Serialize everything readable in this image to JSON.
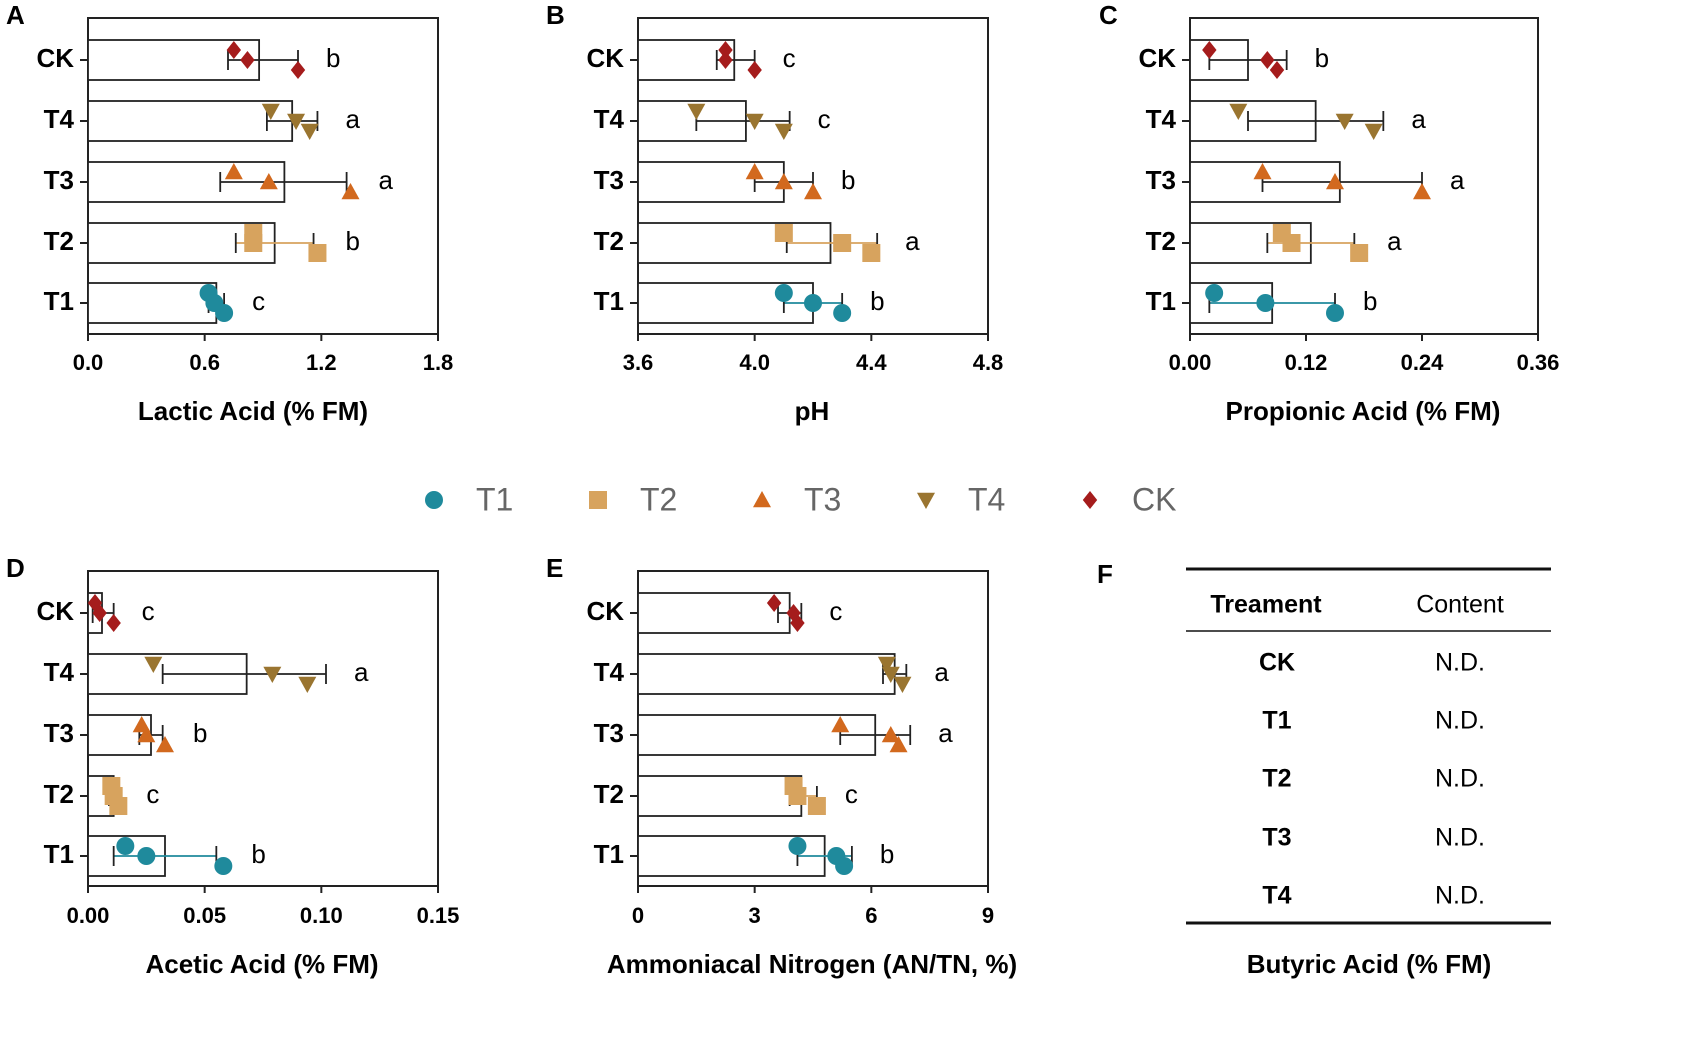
{
  "categories": [
    "CK",
    "T4",
    "T3",
    "T2",
    "T1"
  ],
  "colors": {
    "T1": "#1f8a9c",
    "T2": "#d7a35e",
    "T3": "#d2691e",
    "T4": "#9a7530",
    "CK": "#a51c1c"
  },
  "legend": [
    {
      "name": "T1",
      "marker": "circle"
    },
    {
      "name": "T2",
      "marker": "square"
    },
    {
      "name": "T3",
      "marker": "triangle-up"
    },
    {
      "name": "T4",
      "marker": "triangle-down"
    },
    {
      "name": "CK",
      "marker": "diamond"
    }
  ],
  "chart_data": [
    {
      "panel": "A",
      "type": "bar",
      "orientation": "horizontal",
      "xlabel": "Lactic Acid (% FM)",
      "xlim": [
        0,
        1.8
      ],
      "ticks": [
        0,
        0.6,
        1.2,
        1.8
      ],
      "tick_labels": [
        "0.0",
        "0.6",
        "1.2",
        "1.8"
      ],
      "bars": [
        {
          "group": "CK",
          "mean": 0.88,
          "err_low": 0.72,
          "err_high": 1.08,
          "points": [
            0.75,
            0.82,
            1.08
          ],
          "letter": "b"
        },
        {
          "group": "T4",
          "mean": 1.05,
          "err_low": 0.92,
          "err_high": 1.18,
          "points": [
            0.94,
            1.07,
            1.14
          ],
          "letter": "a"
        },
        {
          "group": "T3",
          "mean": 1.01,
          "err_low": 0.68,
          "err_high": 1.33,
          "points": [
            0.75,
            0.93,
            1.35
          ],
          "letter": "a"
        },
        {
          "group": "T2",
          "mean": 0.96,
          "err_low": 0.76,
          "err_high": 1.16,
          "points": [
            0.85,
            0.85,
            1.18
          ],
          "letter": "b"
        },
        {
          "group": "T1",
          "mean": 0.66,
          "err_low": 0.62,
          "err_high": 0.7,
          "points": [
            0.62,
            0.65,
            0.7
          ],
          "letter": "c"
        }
      ]
    },
    {
      "panel": "B",
      "type": "bar",
      "orientation": "horizontal",
      "xlabel": "pH",
      "xlim": [
        3.6,
        4.8
      ],
      "ticks": [
        3.6,
        4.0,
        4.4,
        4.8
      ],
      "tick_labels": [
        "3.6",
        "4.0",
        "4.4",
        "4.8"
      ],
      "bars": [
        {
          "group": "CK",
          "mean": 3.93,
          "err_low": 3.87,
          "err_high": 4.0,
          "points": [
            3.9,
            3.9,
            4.0
          ],
          "letter": "c"
        },
        {
          "group": "T4",
          "mean": 3.97,
          "err_low": 3.8,
          "err_high": 4.12,
          "points": [
            3.8,
            4.0,
            4.1
          ],
          "letter": "c"
        },
        {
          "group": "T3",
          "mean": 4.1,
          "err_low": 4.0,
          "err_high": 4.2,
          "points": [
            4.0,
            4.1,
            4.2
          ],
          "letter": "b"
        },
        {
          "group": "T2",
          "mean": 4.26,
          "err_low": 4.11,
          "err_high": 4.42,
          "points": [
            4.1,
            4.3,
            4.4
          ],
          "letter": "a"
        },
        {
          "group": "T1",
          "mean": 4.2,
          "err_low": 4.1,
          "err_high": 4.3,
          "points": [
            4.1,
            4.2,
            4.3
          ],
          "letter": "b"
        }
      ]
    },
    {
      "panel": "C",
      "type": "bar",
      "orientation": "horizontal",
      "xlabel": "Propionic Acid (% FM)",
      "xlim": [
        0,
        0.36
      ],
      "ticks": [
        0,
        0.12,
        0.24,
        0.36
      ],
      "tick_labels": [
        "0.00",
        "0.12",
        "0.24",
        "0.36"
      ],
      "bars": [
        {
          "group": "CK",
          "mean": 0.06,
          "err_low": 0.02,
          "err_high": 0.1,
          "points": [
            0.02,
            0.08,
            0.09
          ],
          "letter": "b"
        },
        {
          "group": "T4",
          "mean": 0.13,
          "err_low": 0.06,
          "err_high": 0.2,
          "points": [
            0.05,
            0.16,
            0.19
          ],
          "letter": "a"
        },
        {
          "group": "T3",
          "mean": 0.155,
          "err_low": 0.075,
          "err_high": 0.24,
          "points": [
            0.075,
            0.15,
            0.24
          ],
          "letter": "a"
        },
        {
          "group": "T2",
          "mean": 0.125,
          "err_low": 0.08,
          "err_high": 0.17,
          "points": [
            0.095,
            0.105,
            0.175
          ],
          "letter": "a"
        },
        {
          "group": "T1",
          "mean": 0.085,
          "err_low": 0.02,
          "err_high": 0.15,
          "points": [
            0.025,
            0.078,
            0.15
          ],
          "letter": "b"
        }
      ]
    },
    {
      "panel": "D",
      "type": "bar",
      "orientation": "horizontal",
      "xlabel": "Acetic Acid (% FM)",
      "xlim": [
        0,
        0.15
      ],
      "ticks": [
        0,
        0.05,
        0.1,
        0.15
      ],
      "tick_labels": [
        "0.00",
        "0.05",
        "0.10",
        "0.15"
      ],
      "bars": [
        {
          "group": "CK",
          "mean": 0.006,
          "err_low": 0.002,
          "err_high": 0.011,
          "points": [
            0.003,
            0.005,
            0.011
          ],
          "letter": "c"
        },
        {
          "group": "T4",
          "mean": 0.068,
          "err_low": 0.032,
          "err_high": 0.102,
          "points": [
            0.028,
            0.079,
            0.094
          ],
          "letter": "a"
        },
        {
          "group": "T3",
          "mean": 0.027,
          "err_low": 0.022,
          "err_high": 0.032,
          "points": [
            0.023,
            0.025,
            0.033
          ],
          "letter": "b"
        },
        {
          "group": "T2",
          "mean": 0.011,
          "err_low": 0.009,
          "err_high": 0.013,
          "points": [
            0.01,
            0.011,
            0.013
          ],
          "letter": "c"
        },
        {
          "group": "T1",
          "mean": 0.033,
          "err_low": 0.011,
          "err_high": 0.055,
          "points": [
            0.016,
            0.025,
            0.058
          ],
          "letter": "b"
        }
      ]
    },
    {
      "panel": "E",
      "type": "bar",
      "orientation": "horizontal",
      "xlabel": "Ammoniacal Nitrogen (AN/TN, %)",
      "xlim": [
        0,
        9
      ],
      "ticks": [
        0,
        3,
        6,
        9
      ],
      "tick_labels": [
        "0",
        "3",
        "6",
        "9"
      ],
      "bars": [
        {
          "group": "CK",
          "mean": 3.9,
          "err_low": 3.6,
          "err_high": 4.2,
          "points": [
            3.5,
            4.0,
            4.1
          ],
          "letter": "c"
        },
        {
          "group": "T4",
          "mean": 6.6,
          "err_low": 6.3,
          "err_high": 6.9,
          "points": [
            6.4,
            6.5,
            6.8
          ],
          "letter": "a"
        },
        {
          "group": "T3",
          "mean": 6.1,
          "err_low": 5.2,
          "err_high": 7.0,
          "points": [
            5.2,
            6.5,
            6.7
          ],
          "letter": "a"
        },
        {
          "group": "T2",
          "mean": 4.2,
          "err_low": 3.9,
          "err_high": 4.6,
          "points": [
            4.0,
            4.1,
            4.6
          ],
          "letter": "c"
        },
        {
          "group": "T1",
          "mean": 4.8,
          "err_low": 4.1,
          "err_high": 5.5,
          "points": [
            4.1,
            5.1,
            5.3
          ],
          "letter": "b"
        }
      ]
    },
    {
      "panel": "F",
      "type": "table",
      "columns": [
        "Treament",
        "Content"
      ],
      "rows": [
        [
          "CK",
          "N.D."
        ],
        [
          "T1",
          "N.D."
        ],
        [
          "T2",
          "N.D."
        ],
        [
          "T3",
          "N.D."
        ],
        [
          "T4",
          "N.D."
        ]
      ],
      "caption": "Butyric Acid (% FM)"
    }
  ]
}
